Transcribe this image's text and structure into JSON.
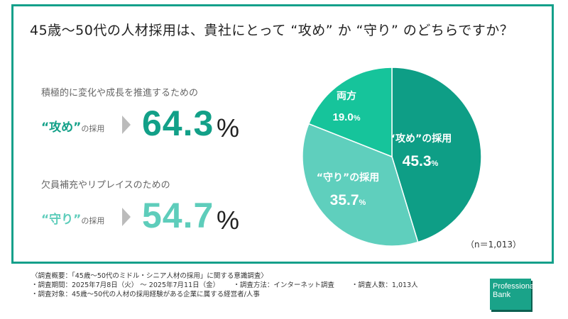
{
  "title": "45歳〜50代の人材採用は、貴社にとって “攻め” か “守り” のどちらですか？",
  "left": [
    {
      "sub": "積極的に変化や成長を推進するための",
      "label": "“攻め”",
      "label_suffix": "の採用",
      "value": "64.3",
      "unit": "%",
      "color": "#12a088"
    },
    {
      "sub": "欠員補充やリプレイスのための",
      "label": "“守り”",
      "label_suffix": "の採用",
      "value": "54.7",
      "unit": "%",
      "color": "#5ecdbb"
    }
  ],
  "chart_data": {
    "type": "pie",
    "start": "top",
    "direction": "clockwise",
    "slices": [
      {
        "label": "“攻め”の採用",
        "value": 45.3,
        "display": "45.3",
        "color": "#0e9e86"
      },
      {
        "label": "“守り”の採用",
        "value": 35.7,
        "display": "35.7",
        "color": "#5fcfbd"
      },
      {
        "label": "両方",
        "value": 19.0,
        "display": "19.0",
        "color": "#16c49b"
      }
    ],
    "unit": "%",
    "note": "（n＝1,013）"
  },
  "footer": {
    "line1": "〈調査概要：「45歳〜50代のミドル・シニア人材の採用」に関する意識調査〉",
    "period": "・調査期間：2025年7月8日（火） 〜 2025年7月11日（金）",
    "method": "・調査方法：インターネット調査",
    "count": "・調査人数：1,013人",
    "target": "・調査対象：45歳〜50代の人材の採用経験がある企業に属する経営者/人事"
  },
  "logo": "Professional Bank"
}
